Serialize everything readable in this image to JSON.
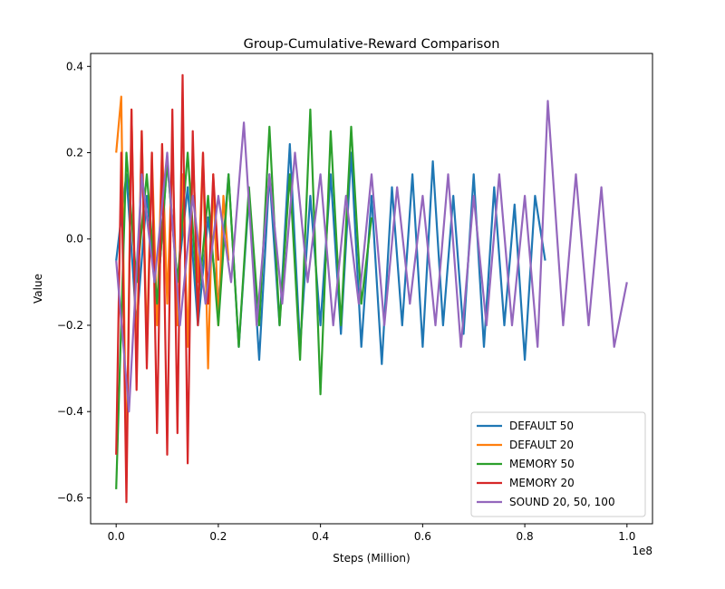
{
  "chart_data": {
    "type": "line",
    "title": "Group-Cumulative-Reward Comparison",
    "xlabel": "Steps (Million)",
    "ylabel": "Value",
    "x_offset_label": "1e8",
    "xlim": [
      -5000000,
      105000000
    ],
    "ylim": [
      -0.66,
      0.43
    ],
    "x_ticks": [
      0,
      20000000,
      40000000,
      60000000,
      80000000,
      100000000
    ],
    "x_tick_labels": [
      "0.0",
      "0.2",
      "0.4",
      "0.6",
      "0.8",
      "1.0"
    ],
    "y_ticks": [
      -0.6,
      -0.4,
      -0.2,
      0.0,
      0.2,
      0.4
    ],
    "y_tick_labels": [
      "−0.6",
      "−0.4",
      "−0.2",
      "0.0",
      "0.2",
      "0.4"
    ],
    "grid": false,
    "legend_position": "lower-right",
    "series": [
      {
        "name": "DEFAULT 50",
        "color": "#1f77b4",
        "x": [
          0,
          2000000,
          4000000,
          6000000,
          8000000,
          10000000,
          12000000,
          14000000,
          16000000,
          18000000,
          20000000,
          22000000,
          24000000,
          26000000,
          28000000,
          30000000,
          32000000,
          34000000,
          36000000,
          38000000,
          40000000,
          42000000,
          44000000,
          46000000,
          48000000,
          50000000,
          52000000,
          54000000,
          56000000,
          58000000,
          60000000,
          62000000,
          64000000,
          66000000,
          68000000,
          70000000,
          72000000,
          74000000,
          76000000,
          78000000,
          80000000,
          82000000,
          84000000
        ],
        "y": [
          -0.05,
          0.15,
          -0.2,
          0.1,
          -0.15,
          0.18,
          -0.1,
          0.12,
          -0.2,
          0.05,
          -0.15,
          0.15,
          -0.25,
          0.1,
          -0.28,
          0.15,
          -0.2,
          0.22,
          -0.25,
          0.1,
          -0.2,
          0.15,
          -0.22,
          0.2,
          -0.25,
          0.1,
          -0.29,
          0.12,
          -0.2,
          0.15,
          -0.25,
          0.18,
          -0.2,
          0.1,
          -0.22,
          0.15,
          -0.25,
          0.12,
          -0.2,
          0.08,
          -0.28,
          0.1,
          -0.05
        ]
      },
      {
        "name": "DEFAULT 20",
        "color": "#ff7f0e",
        "x": [
          0,
          1000000,
          2000000,
          3000000,
          4000000,
          5000000,
          6000000,
          7000000,
          8000000,
          9000000,
          10000000,
          11000000,
          12000000,
          13000000,
          14000000,
          15000000,
          16000000,
          17000000,
          18000000,
          19000000,
          20000000,
          21000000,
          22000000
        ],
        "y": [
          0.2,
          0.33,
          -0.55,
          0.3,
          -0.3,
          0.25,
          -0.25,
          0.2,
          -0.2,
          0.22,
          -0.15,
          0.2,
          -0.2,
          0.15,
          -0.25,
          0.2,
          -0.1,
          0.2,
          -0.3,
          0.15,
          -0.2,
          0.1,
          -0.05
        ]
      },
      {
        "name": "MEMORY 50",
        "color": "#2ca02c",
        "x": [
          0,
          2000000,
          4000000,
          6000000,
          8000000,
          10000000,
          12000000,
          14000000,
          16000000,
          18000000,
          20000000,
          22000000,
          24000000,
          26000000,
          28000000,
          30000000,
          32000000,
          34000000,
          36000000,
          38000000,
          40000000,
          42000000,
          44000000,
          46000000,
          48000000,
          50000000
        ],
        "y": [
          -0.58,
          0.2,
          -0.1,
          0.15,
          -0.15,
          0.18,
          -0.1,
          0.2,
          -0.15,
          0.1,
          -0.2,
          0.15,
          -0.25,
          0.12,
          -0.2,
          0.26,
          -0.2,
          0.15,
          -0.28,
          0.3,
          -0.36,
          0.25,
          -0.2,
          0.26,
          -0.15,
          0.05
        ]
      },
      {
        "name": "MEMORY 20",
        "color": "#d62728",
        "x": [
          0,
          1000000,
          2000000,
          3000000,
          4000000,
          5000000,
          6000000,
          7000000,
          8000000,
          9000000,
          10000000,
          11000000,
          12000000,
          13000000,
          14000000,
          15000000,
          16000000,
          17000000,
          18000000,
          19000000,
          20000000
        ],
        "y": [
          -0.5,
          0.2,
          -0.61,
          0.3,
          -0.35,
          0.25,
          -0.3,
          0.2,
          -0.45,
          0.22,
          -0.5,
          0.3,
          -0.45,
          0.38,
          -0.52,
          0.25,
          -0.2,
          0.2,
          -0.15,
          0.15,
          -0.05
        ]
      },
      {
        "name": "SOUND 20, 50, 100",
        "color": "#9467bd",
        "x": [
          0,
          2500000,
          5000000,
          7500000,
          10000000,
          12500000,
          15000000,
          17500000,
          20000000,
          22500000,
          25000000,
          27500000,
          30000000,
          32500000,
          35000000,
          37500000,
          40000000,
          42500000,
          45000000,
          47500000,
          50000000,
          52500000,
          55000000,
          57500000,
          60000000,
          62500000,
          65000000,
          67500000,
          70000000,
          72500000,
          75000000,
          77500000,
          80000000,
          82500000,
          84500000,
          87500000,
          90000000,
          92500000,
          95000000,
          97500000,
          100000000
        ],
        "y": [
          -0.05,
          -0.4,
          0.15,
          -0.1,
          0.2,
          -0.2,
          0.1,
          -0.15,
          0.1,
          -0.1,
          0.27,
          -0.2,
          0.15,
          -0.15,
          0.2,
          -0.1,
          0.15,
          -0.2,
          0.1,
          -0.15,
          0.15,
          -0.2,
          0.12,
          -0.15,
          0.1,
          -0.2,
          0.15,
          -0.25,
          0.1,
          -0.2,
          0.15,
          -0.2,
          0.1,
          -0.25,
          0.32,
          -0.2,
          0.15,
          -0.2,
          0.12,
          -0.25,
          -0.1
        ]
      }
    ]
  }
}
